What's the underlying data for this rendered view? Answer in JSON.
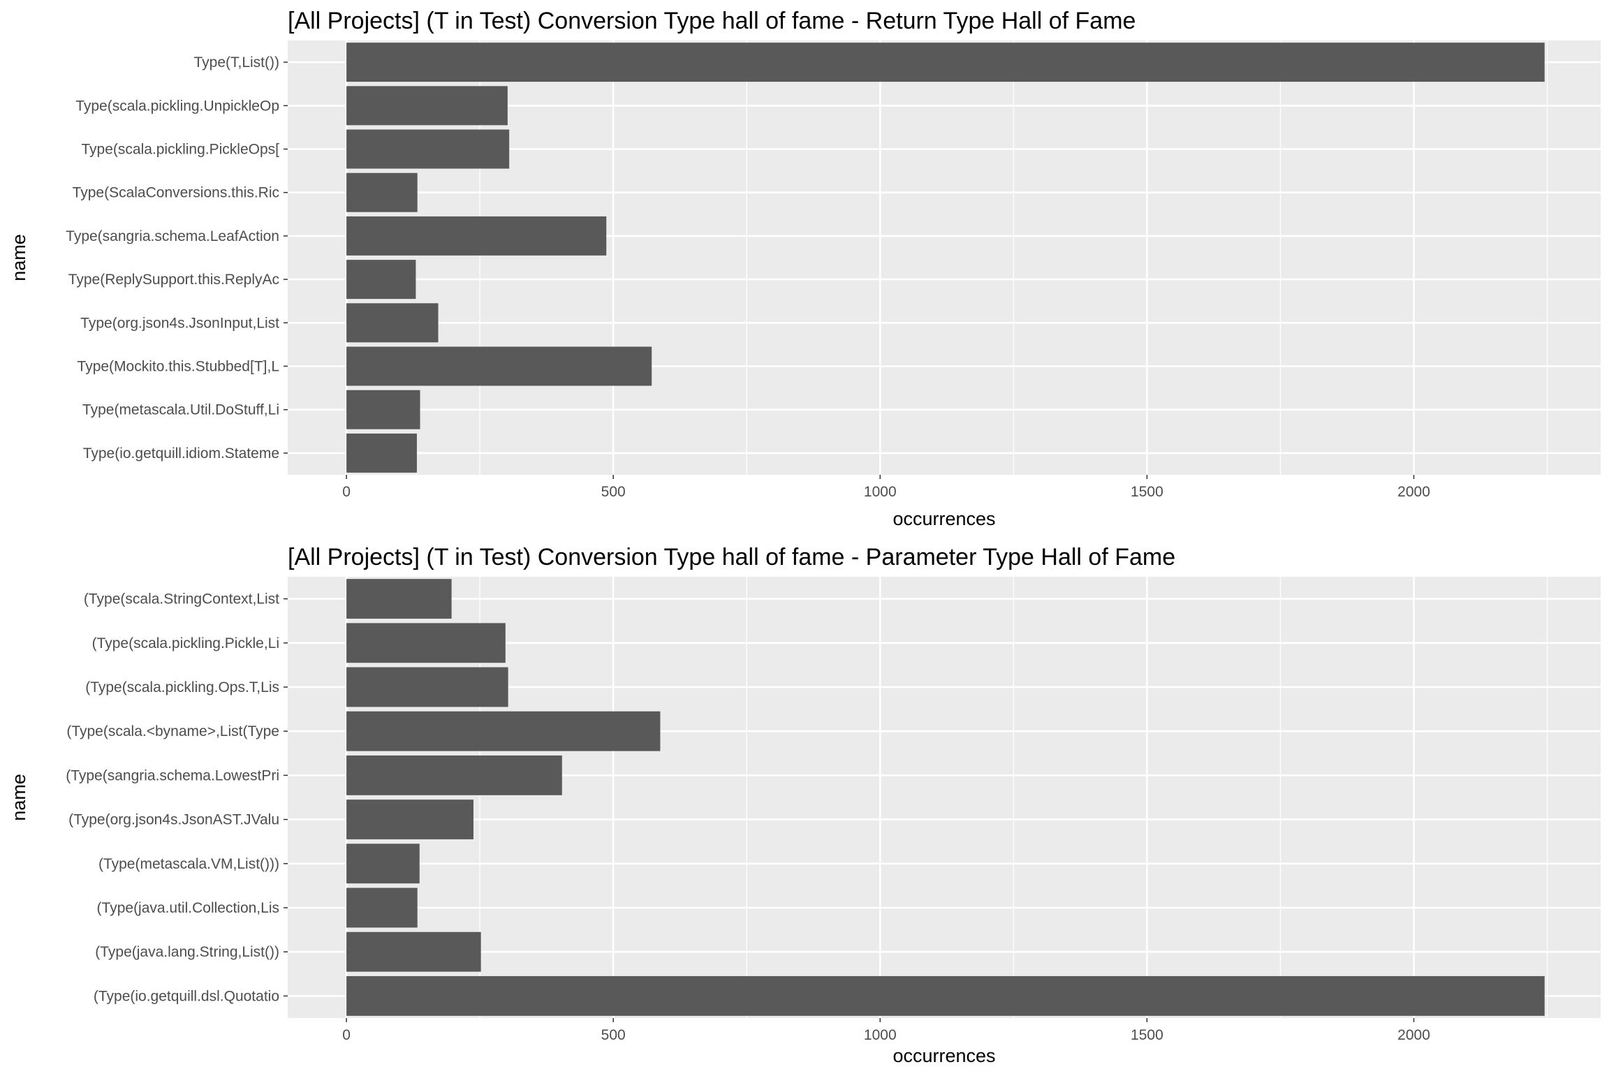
{
  "chart_data": [
    {
      "type": "bar",
      "orientation": "horizontal",
      "title": "[All Projects] (T in Test) Conversion Type hall of fame - Return Type Hall of Fame",
      "xlabel": "occurrences",
      "ylabel": "name",
      "xlim": [
        -110,
        2350
      ],
      "xticks": [
        "0",
        "500",
        "1000",
        "1500",
        "2000"
      ],
      "grid": true,
      "bar_color": "#595959",
      "panel_color": "#ebebeb",
      "categories": [
        "Type(T,List())",
        "Type(scala.pickling.UnpickleOp",
        "Type(scala.pickling.PickleOps[",
        "Type(ScalaConversions.this.Ric",
        "Type(sangria.schema.LeafAction",
        "Type(ReplySupport.this.ReplyAc",
        "Type(org.json4s.JsonInput,List",
        "Type(Mockito.this.Stubbed[T],L",
        "Type(metascala.Util.DoStuff,Li",
        "Type(io.getquill.idiom.Stateme"
      ],
      "values": [
        2245,
        302,
        305,
        133,
        487,
        130,
        172,
        572,
        138,
        132
      ]
    },
    {
      "type": "bar",
      "orientation": "horizontal",
      "title": "[All Projects] (T in Test) Conversion Type hall of fame - Parameter Type Hall of Fame",
      "xlabel": "occurrences",
      "ylabel": "name",
      "xlim": [
        -110,
        2350
      ],
      "xticks": [
        "0",
        "500",
        "1000",
        "1500",
        "2000"
      ],
      "grid": true,
      "bar_color": "#595959",
      "panel_color": "#ebebeb",
      "categories": [
        "(Type(scala.StringContext,List",
        "(Type(scala.pickling.Pickle,Li",
        "(Type(scala.pickling.Ops.T,Lis",
        "(Type(scala.<byname>,List(Type",
        "(Type(sangria.schema.LowestPri",
        "(Type(org.json4s.JsonAST.JValu",
        "(Type(metascala.VM,List()))",
        "(Type(java.util.Collection,Lis",
        "(Type(java.lang.String,List())",
        "(Type(io.getquill.dsl.Quotatio"
      ],
      "values": [
        197,
        298,
        303,
        588,
        404,
        238,
        137,
        133,
        252,
        2245
      ]
    }
  ]
}
